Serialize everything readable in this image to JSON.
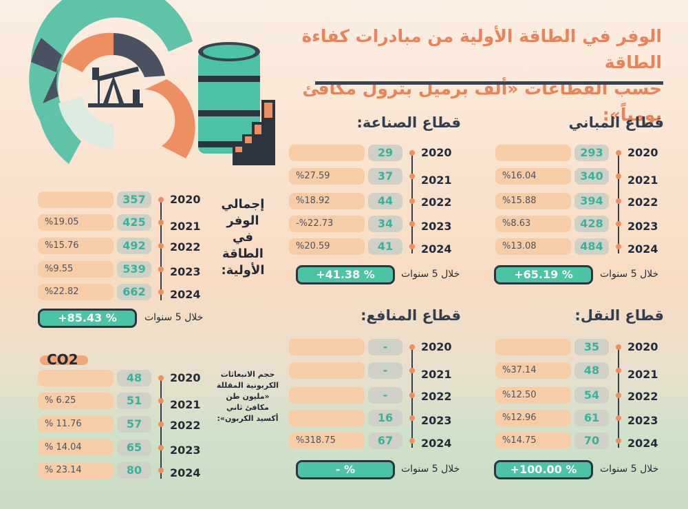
{
  "header": {
    "title_line1": "الوفر في الطاقة الأولية من مبادرات كفاءة الطاقة",
    "title_line2": "حسب القطاعات «ألف برميل بترول مكافئ يومياً»:"
  },
  "colors": {
    "accent_orange": "#ee8f62",
    "accent_green": "#4cc3a7",
    "dark": "#333d4c"
  },
  "labels": {
    "five_years": "خلال 5 سنوات",
    "total_savings": "إجمالي الوفر في الطاقة الأولية:",
    "co2_label": "حجم الانبعاثات الكربونية المقللة «مليون طن مكافئ ثاني أكسيد الكربون»:",
    "co2_badge": "CO2"
  },
  "chart_data": [
    {
      "type": "table",
      "title": "قطاع المباني",
      "years": [
        "2020",
        "2021",
        "2022",
        "2023",
        "2024"
      ],
      "values": [
        "293",
        "340",
        "394",
        "428",
        "484"
      ],
      "changes": [
        "",
        "%16.04",
        "%15.88",
        "%8.63",
        "%13.08"
      ],
      "five_year_total": "+65.19 %"
    },
    {
      "type": "table",
      "title": "قطاع الصناعة:",
      "years": [
        "2020",
        "2021",
        "2022",
        "2023",
        "2024"
      ],
      "values": [
        "29",
        "37",
        "44",
        "34",
        "41"
      ],
      "changes": [
        "",
        "%27.59",
        "%18.92",
        "-%22.73",
        "%20.59"
      ],
      "five_year_total": "+41.38 %"
    },
    {
      "type": "table",
      "title": "قطاع النقل:",
      "years": [
        "2020",
        "2021",
        "2022",
        "2023",
        "2024"
      ],
      "values": [
        "35",
        "48",
        "54",
        "61",
        "70"
      ],
      "changes": [
        "",
        "%37.14",
        "%12.50",
        "%12.96",
        "%14.75"
      ],
      "five_year_total": "+100.00 %"
    },
    {
      "type": "table",
      "title": "قطاع المنافع:",
      "years": [
        "2020",
        "2021",
        "2022",
        "2023",
        "2024"
      ],
      "values": [
        "-",
        "-",
        "-",
        "16",
        "67"
      ],
      "changes": [
        "",
        "",
        "",
        "",
        "%318.75"
      ],
      "five_year_total": "- %"
    },
    {
      "type": "table",
      "title": "إجمالي الوفر في الطاقة الأولية:",
      "years": [
        "2020",
        "2021",
        "2022",
        "2023",
        "2024"
      ],
      "values": [
        "357",
        "425",
        "492",
        "539",
        "662"
      ],
      "changes": [
        "",
        "%19.05",
        "%15.76",
        "%9.55",
        "%22.82"
      ],
      "five_year_total": "+85.43 %"
    },
    {
      "type": "table",
      "title": "حجم الانبعاثات الكربونية المقللة «مليون طن مكافئ ثاني أكسيد الكربون»:",
      "years": [
        "2020",
        "2021",
        "2022",
        "2023",
        "2024"
      ],
      "values": [
        "48",
        "51",
        "57",
        "65",
        "80"
      ],
      "changes": [
        "",
        "% 6.25",
        "% 11.76",
        "% 14.04",
        "% 23.14"
      ],
      "five_year_total": ""
    }
  ]
}
